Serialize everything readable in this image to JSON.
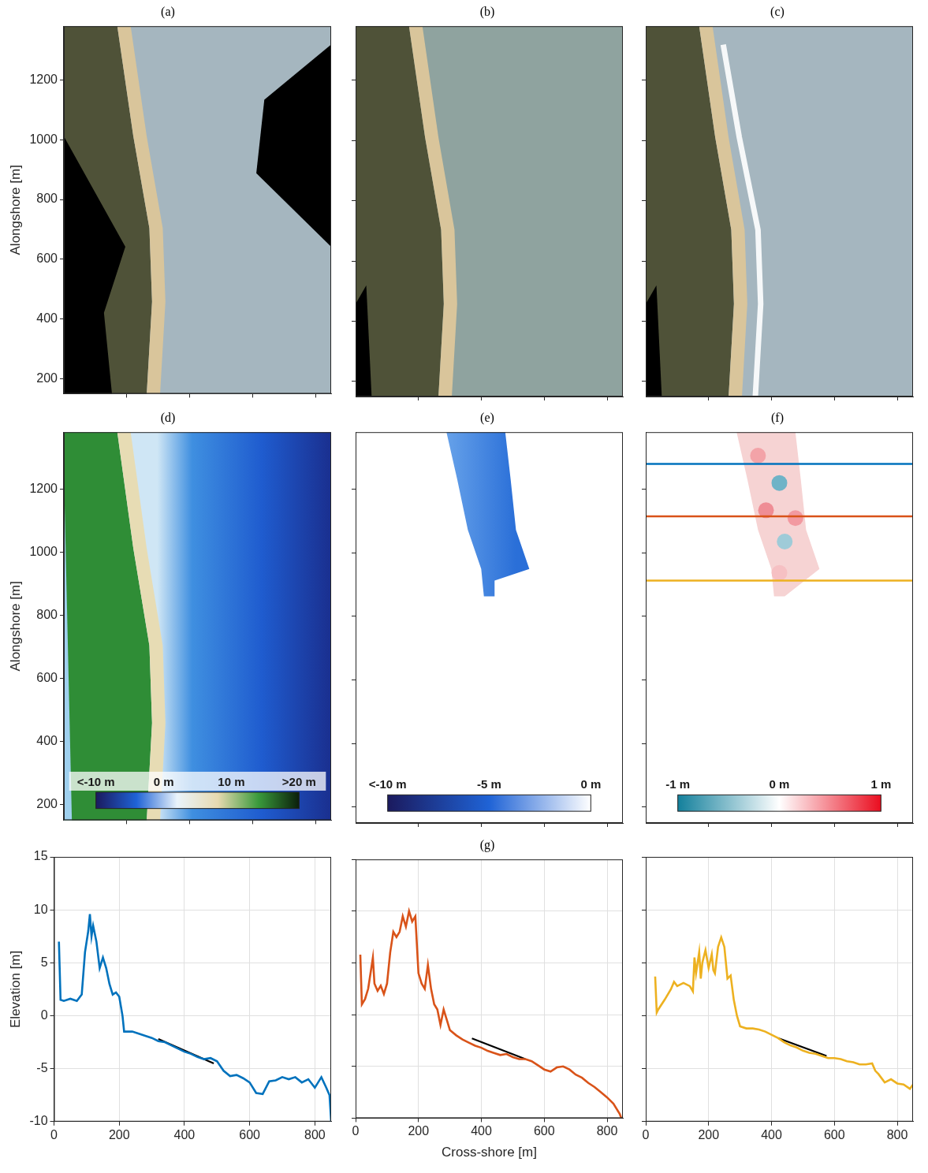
{
  "chart_data": [
    {
      "type": "image",
      "title": "(a)",
      "ylabel": "Alongshore [m]",
      "xlim": [
        0,
        850
      ],
      "ylim": [
        150,
        1380
      ],
      "xticks": [
        200,
        400,
        600,
        800
      ],
      "yticks": [
        200,
        400,
        600,
        800,
        1000,
        1200
      ],
      "tick_labels": "y",
      "grid": false
    },
    {
      "type": "image",
      "title": "(b)",
      "xlim": [
        0,
        850
      ],
      "ylim": [
        150,
        1380
      ],
      "xticks": [
        200,
        400,
        600,
        800
      ],
      "yticks": [
        200,
        400,
        600,
        800,
        1000,
        1200
      ],
      "tick_labels": false,
      "grid": false
    },
    {
      "type": "image",
      "title": "(c)",
      "xlim": [
        0,
        850
      ],
      "ylim": [
        150,
        1380
      ],
      "xticks": [
        200,
        400,
        600,
        800
      ],
      "yticks": [
        200,
        400,
        600,
        800,
        1000,
        1200
      ],
      "tick_labels": false,
      "grid": false
    },
    {
      "type": "map",
      "title": "(d)",
      "ylabel": "Alongshore [m]",
      "xlim": [
        0,
        850
      ],
      "ylim": [
        150,
        1380
      ],
      "xticks": [
        200,
        400,
        600,
        800
      ],
      "yticks": [
        200,
        400,
        600,
        800,
        1000,
        1200
      ],
      "tick_labels": "y",
      "grid": false,
      "colorbar": {
        "range": [
          -10,
          20
        ],
        "ticks": [
          {
            "value": -10,
            "label": "<-10 m"
          },
          {
            "value": 0,
            "label": "0 m"
          },
          {
            "value": 10,
            "label": "10 m"
          },
          {
            "value": 20,
            "label": ">20 m"
          }
        ],
        "colors": [
          "#1b1a5e",
          "#1f63d6",
          "#eaf4fb",
          "#e6d9b0",
          "#3a9a3c",
          "#0b1f0b"
        ]
      }
    },
    {
      "type": "map",
      "title": "(e)",
      "xlim": [
        0,
        850
      ],
      "ylim": [
        150,
        1380
      ],
      "xticks": [
        200,
        400,
        600,
        800
      ],
      "yticks": [
        200,
        400,
        600,
        800,
        1000,
        1200
      ],
      "tick_labels": false,
      "grid": false,
      "colorbar": {
        "range": [
          -10,
          0
        ],
        "ticks": [
          {
            "value": -10,
            "label": "<-10 m"
          },
          {
            "value": -5,
            "label": "-5 m"
          },
          {
            "value": 0,
            "label": "0 m"
          }
        ],
        "colors": [
          "#1b1a5e",
          "#1f63d6",
          "#ffffff"
        ]
      }
    },
    {
      "type": "map",
      "title": "(f)",
      "xlim": [
        0,
        850
      ],
      "ylim": [
        150,
        1380
      ],
      "xticks": [
        200,
        400,
        600,
        800
      ],
      "yticks": [
        200,
        400,
        600,
        800,
        1000,
        1200
      ],
      "tick_labels": false,
      "grid": false,
      "colorbar": {
        "range": [
          -1,
          1
        ],
        "ticks": [
          {
            "value": -1,
            "label": "-1 m"
          },
          {
            "value": 0,
            "label": "0 m"
          },
          {
            "value": 1,
            "label": "1 m"
          }
        ],
        "colors": [
          "#13809c",
          "#ffffff",
          "#ea0d1f"
        ]
      },
      "series": [
        {
          "color": "#0072bd",
          "x": [
            0,
            850
          ],
          "values": [
            1280,
            1280
          ]
        },
        {
          "color": "#d95319",
          "x": [
            0,
            850
          ],
          "values": [
            1115,
            1115
          ]
        },
        {
          "color": "#edb120",
          "x": [
            0,
            850
          ],
          "values": [
            913,
            913
          ]
        }
      ]
    },
    {
      "type": "line",
      "ylabel": "Elevation [m]",
      "xlim": [
        0,
        850
      ],
      "ylim": [
        -10,
        15
      ],
      "xticks": [
        0,
        200,
        400,
        600,
        800
      ],
      "yticks": [
        -10,
        -5,
        0,
        5,
        10,
        15
      ],
      "grid": true,
      "series": [
        {
          "color": "#0072bd",
          "x": [
            15,
            20,
            30,
            50,
            70,
            85,
            95,
            105,
            110,
            115,
            120,
            130,
            140,
            150,
            160,
            170,
            180,
            190,
            200,
            210,
            215,
            240,
            260,
            280,
            300,
            320,
            340,
            360,
            380,
            400,
            420,
            440,
            460,
            480,
            500,
            520,
            540,
            560,
            580,
            600,
            620,
            640,
            660,
            680,
            700,
            720,
            740,
            760,
            780,
            800,
            820,
            835,
            845,
            850
          ],
          "values": [
            7,
            1.5,
            1.4,
            1.6,
            1.4,
            2,
            6,
            8,
            9.6,
            7.5,
            8.5,
            7,
            4.5,
            5.5,
            4.5,
            3,
            2,
            2.2,
            1.8,
            0,
            -1.5,
            -1.5,
            -1.7,
            -1.9,
            -2.1,
            -2.4,
            -2.5,
            -2.8,
            -3.1,
            -3.4,
            -3.6,
            -3.9,
            -4.1,
            -4,
            -4.3,
            -5.2,
            -5.7,
            -5.6,
            -5.9,
            -6.3,
            -7.3,
            -7.4,
            -6.2,
            -6.1,
            -5.8,
            -6,
            -5.8,
            -6.3,
            -6,
            -6.8,
            -5.8,
            -6.8,
            -7.5,
            -10
          ]
        },
        {
          "color": "#000000",
          "x": [
            320,
            490
          ],
          "values": [
            -2.2,
            -4.5
          ]
        }
      ]
    },
    {
      "type": "line",
      "title": "(g)",
      "xlabel": "Cross-shore [m]",
      "xlim": [
        0,
        850
      ],
      "ylim": [
        -10,
        15
      ],
      "xticks": [
        0,
        200,
        400,
        600,
        800
      ],
      "yticks": [
        -10,
        -5,
        0,
        5,
        10,
        15
      ],
      "tick_labels": "x",
      "grid": true,
      "series": [
        {
          "color": "#d95319",
          "x": [
            15,
            20,
            30,
            40,
            50,
            55,
            60,
            70,
            80,
            90,
            100,
            110,
            120,
            130,
            140,
            150,
            160,
            170,
            180,
            190,
            200,
            210,
            220,
            230,
            240,
            250,
            260,
            270,
            280,
            290,
            300,
            320,
            340,
            360,
            380,
            400,
            420,
            440,
            460,
            480,
            500,
            520,
            540,
            560,
            580,
            600,
            620,
            640,
            660,
            680,
            700,
            720,
            740,
            760,
            780,
            800,
            820,
            840,
            845
          ],
          "values": [
            5.8,
            1,
            1.5,
            2.5,
            4.5,
            5.5,
            3,
            2.3,
            2.8,
            2,
            3,
            6,
            8,
            7.5,
            8,
            9.5,
            8.5,
            10,
            9,
            9.5,
            4,
            3,
            2.5,
            4.8,
            2.5,
            1,
            0.5,
            -1,
            0.5,
            -0.5,
            -1.5,
            -2,
            -2.4,
            -2.7,
            -3,
            -3.2,
            -3.5,
            -3.7,
            -3.9,
            -3.8,
            -4.1,
            -4.3,
            -4.3,
            -4.5,
            -4.9,
            -5.3,
            -5.5,
            -5.1,
            -5,
            -5.3,
            -5.8,
            -6.1,
            -6.6,
            -7,
            -7.5,
            -8,
            -8.6,
            -9.6,
            -10
          ]
        },
        {
          "color": "#000000",
          "x": [
            370,
            540
          ],
          "values": [
            -2.3,
            -4.3
          ]
        }
      ]
    },
    {
      "type": "line",
      "xlim": [
        0,
        850
      ],
      "ylim": [
        -10,
        15
      ],
      "xticks": [
        0,
        200,
        400,
        600,
        800
      ],
      "yticks": [
        -10,
        -5,
        0,
        5,
        10,
        15
      ],
      "tick_labels": "x",
      "grid": true,
      "series": [
        {
          "color": "#edb120",
          "x": [
            30,
            35,
            40,
            60,
            80,
            90,
            100,
            120,
            140,
            150,
            155,
            160,
            170,
            175,
            180,
            190,
            200,
            210,
            215,
            220,
            230,
            240,
            250,
            260,
            270,
            280,
            290,
            300,
            320,
            340,
            360,
            380,
            400,
            420,
            440,
            460,
            480,
            500,
            520,
            540,
            560,
            580,
            600,
            620,
            640,
            660,
            680,
            700,
            720,
            730,
            740,
            760,
            780,
            800,
            820,
            840,
            850
          ],
          "values": [
            3.7,
            0.3,
            0.6,
            1.5,
            2.5,
            3.2,
            2.8,
            3.1,
            2.8,
            2.3,
            5.5,
            4,
            6,
            3.5,
            5,
            6.2,
            4.5,
            5.8,
            4.3,
            4,
            6.5,
            7.4,
            6.5,
            3.5,
            3.8,
            1.5,
            0,
            -1,
            -1.2,
            -1.2,
            -1.3,
            -1.5,
            -1.8,
            -2.1,
            -2.5,
            -2.8,
            -3,
            -3.3,
            -3.5,
            -3.6,
            -3.8,
            -4,
            -4,
            -4.1,
            -4.3,
            -4.4,
            -4.6,
            -4.6,
            -4.5,
            -5.2,
            -5.5,
            -6.3,
            -6,
            -6.4,
            -6.5,
            -6.9,
            -6.5
          ]
        },
        {
          "color": "#000000",
          "x": [
            420,
            575
          ],
          "values": [
            -2.1,
            -3.8
          ]
        }
      ]
    }
  ]
}
